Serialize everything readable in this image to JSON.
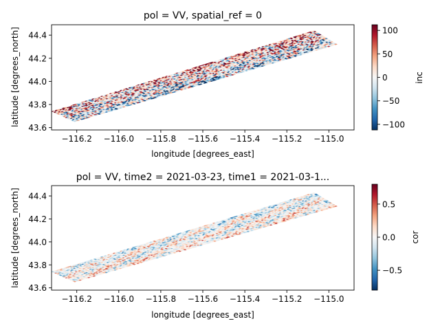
{
  "colormap": {
    "name": "RdBu_r",
    "stops": [
      "#053061",
      "#2166ac",
      "#4393c3",
      "#92c5de",
      "#d1e5f0",
      "#f7f7f7",
      "#fddbc7",
      "#f4a582",
      "#d6604d",
      "#b2182b",
      "#67001f"
    ]
  },
  "chart_data": [
    {
      "type": "heatmap",
      "title": "pol = VV, spatial_ref = 0",
      "xlabel": "longitude [degrees_east]",
      "ylabel": "latitude [degrees_north]",
      "xlim": [
        -116.32,
        -114.88
      ],
      "ylim": [
        43.58,
        44.49
      ],
      "xticks": [
        -116.2,
        -116.0,
        -115.8,
        -115.6,
        -115.4,
        -115.2,
        -115.0
      ],
      "xtick_labels": [
        "−116.2",
        "−116.0",
        "−115.8",
        "−115.6",
        "−115.4",
        "−115.2",
        "−115.0"
      ],
      "yticks": [
        43.6,
        43.8,
        44.0,
        44.2,
        44.4
      ],
      "ytick_labels": [
        "43.6",
        "43.8",
        "44.0",
        "44.2",
        "44.4"
      ],
      "colorbar": {
        "label": "inc",
        "vmin": -112,
        "vmax": 112,
        "ticks": [
          -100,
          -50,
          0,
          50,
          100
        ],
        "tick_labels": [
          "−100",
          "−50",
          "0",
          "50",
          "100"
        ]
      },
      "swath": {
        "corners": [
          [
            -116.32,
            43.74
          ],
          [
            -116.21,
            43.65
          ],
          [
            -114.96,
            44.32
          ],
          [
            -115.07,
            44.44
          ]
        ],
        "amplitude": 0.95,
        "bias_north": 0.45,
        "bias_south": -0.35,
        "seed": 7
      }
    },
    {
      "type": "heatmap",
      "title": "pol = VV, time2 = 2021-03-23, time1 = 2021-03-1...",
      "xlabel": "longitude [degrees_east]",
      "ylabel": "latitude [degrees_north]",
      "xlim": [
        -116.32,
        -114.88
      ],
      "ylim": [
        43.58,
        44.49
      ],
      "xticks": [
        -116.2,
        -116.0,
        -115.8,
        -115.6,
        -115.4,
        -115.2,
        -115.0
      ],
      "xtick_labels": [
        "−116.2",
        "−116.0",
        "−115.8",
        "−115.6",
        "−115.4",
        "−115.2",
        "−115.0"
      ],
      "yticks": [
        43.6,
        43.8,
        44.0,
        44.2,
        44.4
      ],
      "ytick_labels": [
        "43.6",
        "43.8",
        "44.0",
        "44.2",
        "44.4"
      ],
      "colorbar": {
        "label": "cor",
        "vmin": -0.8,
        "vmax": 0.8,
        "ticks": [
          -0.5,
          0.0,
          0.5
        ],
        "tick_labels": [
          "−0.5",
          "0.0",
          "0.5"
        ]
      },
      "swath": {
        "corners": [
          [
            -116.32,
            43.74
          ],
          [
            -116.21,
            43.65
          ],
          [
            -114.96,
            44.31
          ],
          [
            -115.07,
            44.43
          ]
        ],
        "amplitude": 0.45,
        "bias_north": -0.1,
        "bias_south": 0.1,
        "seed": 23
      }
    }
  ]
}
